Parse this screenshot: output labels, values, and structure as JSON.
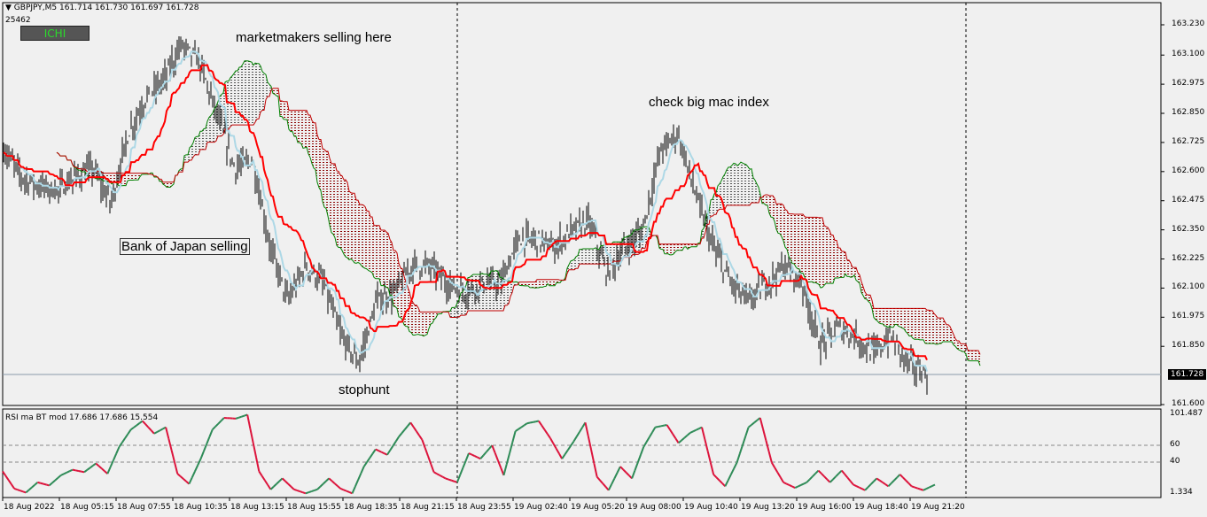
{
  "header": {
    "symbol_line": "GBPJPY,M5  161.714 161.730 161.697 161.728",
    "bars_count": "25462",
    "indicator_button": "ICHI"
  },
  "annotations": {
    "marketmakers": "marketmakers selling here",
    "bigmac": "check big mac index",
    "boj": "Bank of Japan selling",
    "stophunt": "stophunt"
  },
  "price_axis": [
    "163.230",
    "163.100",
    "162.975",
    "162.850",
    "162.725",
    "162.600",
    "162.475",
    "162.350",
    "162.225",
    "162.100",
    "161.975",
    "161.850",
    "161.600"
  ],
  "current_price": "161.728",
  "rsi_panel": {
    "label": "RSI ma BT mod 17.686 17.686 15.554",
    "axis": [
      "101.487",
      "60",
      "40",
      "1.334"
    ]
  },
  "time_axis": [
    "18 Aug 2022",
    "18 Aug 05:15",
    "18 Aug 07:55",
    "18 Aug 10:35",
    "18 Aug 13:15",
    "18 Aug 15:55",
    "18 Aug 18:35",
    "18 Aug 21:15",
    "18 Aug 23:55",
    "19 Aug 02:40",
    "19 Aug 05:20",
    "19 Aug 08:00",
    "19 Aug 10:40",
    "19 Aug 13:20",
    "19 Aug 16:00",
    "19 Aug 18:40",
    "19 Aug 21:20"
  ],
  "colors": {
    "kijun": "#ff0000",
    "tenkan": "#add8e6",
    "spanA": "#008000",
    "spanB": "#c00000",
    "rsi_up": "#2e8b57",
    "rsi_down": "#dc143c"
  },
  "chart_data": {
    "type": "candlestick",
    "symbol": "GBPJPY",
    "timeframe": "M5",
    "ylim": [
      161.6,
      163.23
    ],
    "close_path": [
      162.69,
      162.576,
      162.538,
      162.519,
      162.576,
      162.614,
      162.462,
      162.766,
      162.918,
      162.994,
      163.146,
      163.07,
      162.842,
      162.614,
      162.652,
      162.272,
      162.044,
      162.196,
      162.12,
      161.892,
      161.778,
      162.044,
      162.082,
      162.196,
      162.196,
      162.12,
      162.082,
      162.12,
      162.12,
      162.31,
      162.31,
      162.272,
      162.348,
      162.386,
      162.158,
      162.272,
      162.348,
      162.69,
      162.766,
      162.5,
      162.272,
      162.12,
      162.044,
      162.12,
      162.196,
      162.12,
      161.854,
      161.93,
      161.892,
      161.816,
      161.892,
      161.778,
      161.728
    ],
    "rsi_path": [
      29,
      7,
      2,
      15,
      11,
      24,
      31,
      28,
      39,
      26,
      60,
      82,
      93,
      77,
      85,
      26,
      13,
      45,
      82,
      97,
      96,
      101,
      29,
      6,
      20,
      6,
      1,
      6,
      20,
      7,
      1,
      35,
      57,
      50,
      73,
      91,
      69,
      28,
      20,
      15,
      52,
      45,
      62,
      24,
      80,
      90,
      93,
      71,
      45,
      67,
      91,
      22,
      5,
      35,
      20,
      60,
      85,
      88,
      65,
      78,
      85,
      25,
      10,
      40,
      85,
      97,
      40,
      15,
      8,
      15,
      30,
      15,
      30,
      12,
      5,
      20,
      10,
      25,
      10,
      5,
      12
    ],
    "rsi_levels": [
      60,
      40
    ]
  }
}
